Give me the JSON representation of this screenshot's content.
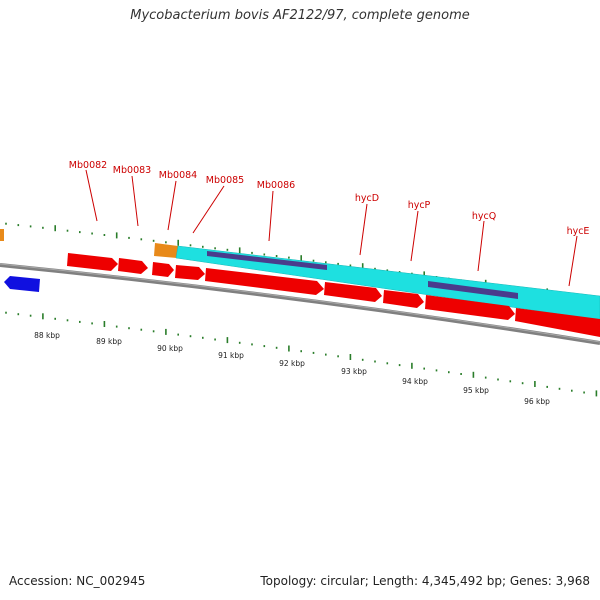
{
  "title": "Mycobacterium bovis AF2122/97, complete genome",
  "footer": {
    "accession": "Accession: NC_002945",
    "summary": "Topology: circular; Length: 4,345,492 bp; Genes: 3,968"
  },
  "colors": {
    "label": "#cc0000",
    "cds": "#ee0000",
    "gene": "#1ee0e0",
    "misc": "#4a3c8c",
    "orange": "#e88a1a",
    "reverse": "#1010e0",
    "backbone": "#808080",
    "tick": "#2a7d2a"
  },
  "gene_labels": [
    "Mb0082",
    "Mb0083",
    "Mb0084",
    "Mb0085",
    "Mb0086",
    "hycD",
    "hycP",
    "hycQ",
    "hycE"
  ],
  "scale_labels": [
    "88 kbp",
    "89 kbp",
    "90 kbp",
    "91 kbp",
    "92 kbp",
    "93 kbp",
    "94 kbp",
    "95 kbp",
    "96 kbp"
  ]
}
